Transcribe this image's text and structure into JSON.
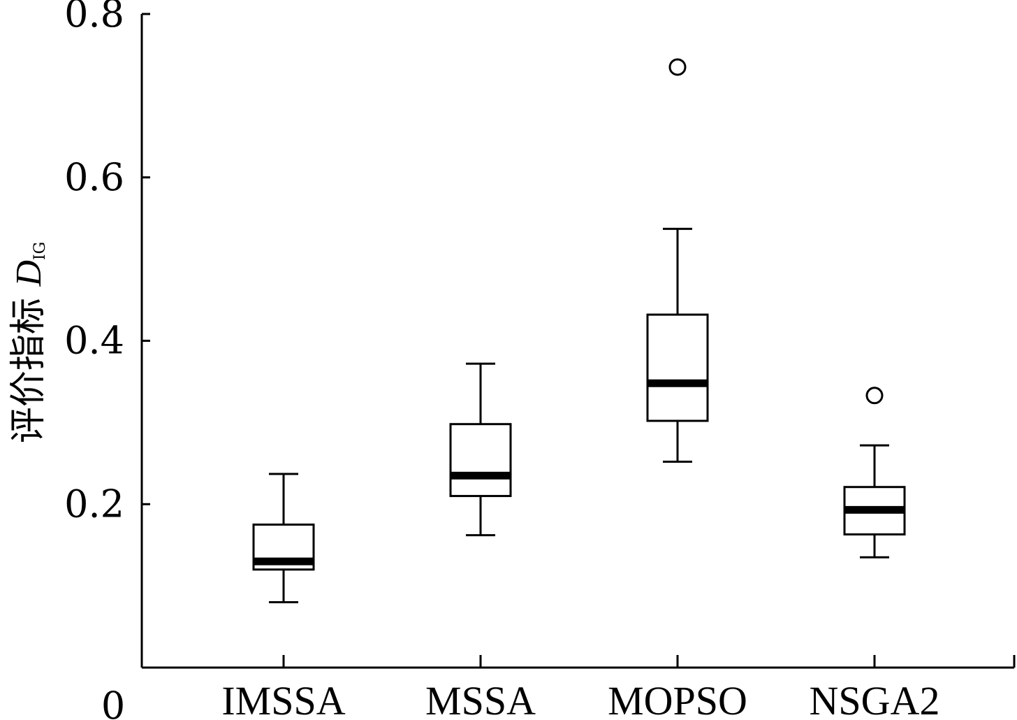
{
  "chart_data": {
    "type": "boxplot",
    "categories": [
      "IMSSA",
      "MSSA",
      "MOPSO",
      "NSGA2"
    ],
    "ylabel": "评价指标",
    "ylabel_var": "D",
    "ylabel_sub": "IG",
    "ylim": [
      0,
      0.8
    ],
    "yticks": [
      0.2,
      0.4,
      0.6,
      0.8
    ],
    "ytick_labels": [
      "0.2",
      "0.4",
      "0.6",
      "0.8"
    ],
    "origin_label": "0",
    "grid": false,
    "boxes": [
      {
        "category": "IMSSA",
        "whisker_low": 0.08,
        "q1": 0.12,
        "median": 0.13,
        "q3": 0.175,
        "whisker_high": 0.237,
        "outliers": []
      },
      {
        "category": "MSSA",
        "whisker_low": 0.162,
        "q1": 0.21,
        "median": 0.235,
        "q3": 0.298,
        "whisker_high": 0.372,
        "outliers": []
      },
      {
        "category": "MOPSO",
        "whisker_low": 0.252,
        "q1": 0.302,
        "median": 0.348,
        "q3": 0.432,
        "whisker_high": 0.537,
        "outliers": [
          0.735
        ]
      },
      {
        "category": "NSGA2",
        "whisker_low": 0.135,
        "q1": 0.163,
        "median": 0.193,
        "q3": 0.221,
        "whisker_high": 0.272,
        "outliers": [
          0.333
        ]
      }
    ]
  }
}
